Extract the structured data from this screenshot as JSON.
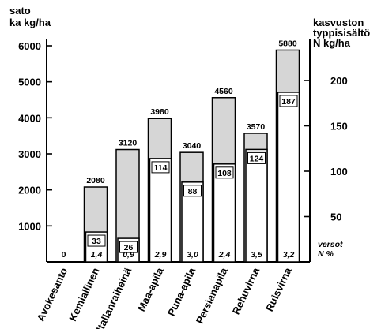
{
  "chart_data": {
    "type": "bar",
    "left_axis": {
      "title_lines": [
        "sato",
        "ka kg/ha"
      ],
      "ticks": [
        1000,
        2000,
        3000,
        4000,
        5000,
        6000
      ],
      "tick_labels": [
        "1000",
        "2000",
        "3000",
        "4000",
        "5000",
        "6000"
      ],
      "range": [
        0,
        6000
      ]
    },
    "right_axis": {
      "title_lines": [
        "kasvuston",
        "typpisisältö",
        "N kg/ha"
      ],
      "ticks": [
        50,
        100,
        150,
        200
      ],
      "tick_labels": [
        "50",
        "100",
        "150",
        "200"
      ],
      "range": [
        0,
        236
      ]
    },
    "categories": [
      "Avokesanto",
      "Kemiallinen",
      "Italianraiheinä",
      "Maa-apila",
      "Puna-apila",
      "Persianapila",
      "Rehuvirna",
      "Ruisvirna"
    ],
    "series": [
      {
        "axis": "left",
        "values": [
          0,
          2080,
          3120,
          3980,
          3040,
          4560,
          3570,
          5880
        ],
        "labels": [
          "0",
          "2080",
          "3120",
          "3980",
          "3040",
          "4560",
          "3570",
          "5880"
        ],
        "color": "#d6d6d6"
      },
      {
        "axis": "right",
        "values": [
          null,
          33,
          26,
          114,
          88,
          108,
          124,
          187
        ],
        "labels": [
          "",
          "33",
          "26",
          "114",
          "88",
          "108",
          "124",
          "187"
        ],
        "color": "#ffffff"
      }
    ],
    "n_percent": [
      "",
      "1,4",
      "0,9",
      "2,9",
      "3,0",
      "2,4",
      "3,5",
      "3,2"
    ],
    "n_percent_note_lines": [
      "versot",
      "N %"
    ],
    "grid": false,
    "legend": "none"
  }
}
